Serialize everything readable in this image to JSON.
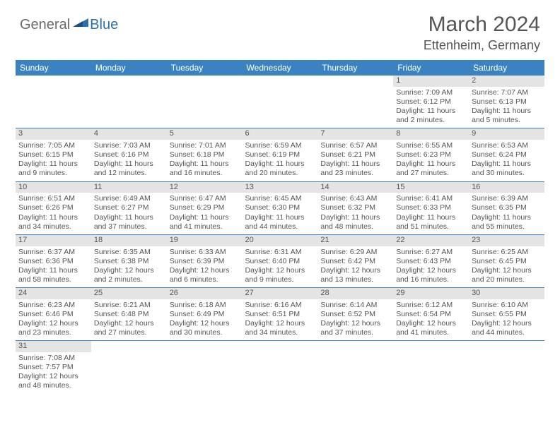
{
  "brand": {
    "part1": "General",
    "part2": "Blue"
  },
  "title": "March 2024",
  "location": "Ettenheim, Germany",
  "colors": {
    "header_bg": "#3b83c0",
    "header_text": "#ffffff",
    "daynum_bg": "#e4e4e4",
    "text": "#555555",
    "row_border": "#3b83c0",
    "brand_blue": "#2b6fb0",
    "brand_gray": "#6a6a6a"
  },
  "day_headers": [
    "Sunday",
    "Monday",
    "Tuesday",
    "Wednesday",
    "Thursday",
    "Friday",
    "Saturday"
  ],
  "weeks": [
    [
      null,
      null,
      null,
      null,
      null,
      {
        "n": "1",
        "sr": "Sunrise: 7:09 AM",
        "ss": "Sunset: 6:12 PM",
        "d1": "Daylight: 11 hours",
        "d2": "and 2 minutes."
      },
      {
        "n": "2",
        "sr": "Sunrise: 7:07 AM",
        "ss": "Sunset: 6:13 PM",
        "d1": "Daylight: 11 hours",
        "d2": "and 5 minutes."
      }
    ],
    [
      {
        "n": "3",
        "sr": "Sunrise: 7:05 AM",
        "ss": "Sunset: 6:15 PM",
        "d1": "Daylight: 11 hours",
        "d2": "and 9 minutes."
      },
      {
        "n": "4",
        "sr": "Sunrise: 7:03 AM",
        "ss": "Sunset: 6:16 PM",
        "d1": "Daylight: 11 hours",
        "d2": "and 12 minutes."
      },
      {
        "n": "5",
        "sr": "Sunrise: 7:01 AM",
        "ss": "Sunset: 6:18 PM",
        "d1": "Daylight: 11 hours",
        "d2": "and 16 minutes."
      },
      {
        "n": "6",
        "sr": "Sunrise: 6:59 AM",
        "ss": "Sunset: 6:19 PM",
        "d1": "Daylight: 11 hours",
        "d2": "and 20 minutes."
      },
      {
        "n": "7",
        "sr": "Sunrise: 6:57 AM",
        "ss": "Sunset: 6:21 PM",
        "d1": "Daylight: 11 hours",
        "d2": "and 23 minutes."
      },
      {
        "n": "8",
        "sr": "Sunrise: 6:55 AM",
        "ss": "Sunset: 6:23 PM",
        "d1": "Daylight: 11 hours",
        "d2": "and 27 minutes."
      },
      {
        "n": "9",
        "sr": "Sunrise: 6:53 AM",
        "ss": "Sunset: 6:24 PM",
        "d1": "Daylight: 11 hours",
        "d2": "and 30 minutes."
      }
    ],
    [
      {
        "n": "10",
        "sr": "Sunrise: 6:51 AM",
        "ss": "Sunset: 6:26 PM",
        "d1": "Daylight: 11 hours",
        "d2": "and 34 minutes."
      },
      {
        "n": "11",
        "sr": "Sunrise: 6:49 AM",
        "ss": "Sunset: 6:27 PM",
        "d1": "Daylight: 11 hours",
        "d2": "and 37 minutes."
      },
      {
        "n": "12",
        "sr": "Sunrise: 6:47 AM",
        "ss": "Sunset: 6:29 PM",
        "d1": "Daylight: 11 hours",
        "d2": "and 41 minutes."
      },
      {
        "n": "13",
        "sr": "Sunrise: 6:45 AM",
        "ss": "Sunset: 6:30 PM",
        "d1": "Daylight: 11 hours",
        "d2": "and 44 minutes."
      },
      {
        "n": "14",
        "sr": "Sunrise: 6:43 AM",
        "ss": "Sunset: 6:32 PM",
        "d1": "Daylight: 11 hours",
        "d2": "and 48 minutes."
      },
      {
        "n": "15",
        "sr": "Sunrise: 6:41 AM",
        "ss": "Sunset: 6:33 PM",
        "d1": "Daylight: 11 hours",
        "d2": "and 51 minutes."
      },
      {
        "n": "16",
        "sr": "Sunrise: 6:39 AM",
        "ss": "Sunset: 6:35 PM",
        "d1": "Daylight: 11 hours",
        "d2": "and 55 minutes."
      }
    ],
    [
      {
        "n": "17",
        "sr": "Sunrise: 6:37 AM",
        "ss": "Sunset: 6:36 PM",
        "d1": "Daylight: 11 hours",
        "d2": "and 58 minutes."
      },
      {
        "n": "18",
        "sr": "Sunrise: 6:35 AM",
        "ss": "Sunset: 6:38 PM",
        "d1": "Daylight: 12 hours",
        "d2": "and 2 minutes."
      },
      {
        "n": "19",
        "sr": "Sunrise: 6:33 AM",
        "ss": "Sunset: 6:39 PM",
        "d1": "Daylight: 12 hours",
        "d2": "and 6 minutes."
      },
      {
        "n": "20",
        "sr": "Sunrise: 6:31 AM",
        "ss": "Sunset: 6:40 PM",
        "d1": "Daylight: 12 hours",
        "d2": "and 9 minutes."
      },
      {
        "n": "21",
        "sr": "Sunrise: 6:29 AM",
        "ss": "Sunset: 6:42 PM",
        "d1": "Daylight: 12 hours",
        "d2": "and 13 minutes."
      },
      {
        "n": "22",
        "sr": "Sunrise: 6:27 AM",
        "ss": "Sunset: 6:43 PM",
        "d1": "Daylight: 12 hours",
        "d2": "and 16 minutes."
      },
      {
        "n": "23",
        "sr": "Sunrise: 6:25 AM",
        "ss": "Sunset: 6:45 PM",
        "d1": "Daylight: 12 hours",
        "d2": "and 20 minutes."
      }
    ],
    [
      {
        "n": "24",
        "sr": "Sunrise: 6:23 AM",
        "ss": "Sunset: 6:46 PM",
        "d1": "Daylight: 12 hours",
        "d2": "and 23 minutes."
      },
      {
        "n": "25",
        "sr": "Sunrise: 6:21 AM",
        "ss": "Sunset: 6:48 PM",
        "d1": "Daylight: 12 hours",
        "d2": "and 27 minutes."
      },
      {
        "n": "26",
        "sr": "Sunrise: 6:18 AM",
        "ss": "Sunset: 6:49 PM",
        "d1": "Daylight: 12 hours",
        "d2": "and 30 minutes."
      },
      {
        "n": "27",
        "sr": "Sunrise: 6:16 AM",
        "ss": "Sunset: 6:51 PM",
        "d1": "Daylight: 12 hours",
        "d2": "and 34 minutes."
      },
      {
        "n": "28",
        "sr": "Sunrise: 6:14 AM",
        "ss": "Sunset: 6:52 PM",
        "d1": "Daylight: 12 hours",
        "d2": "and 37 minutes."
      },
      {
        "n": "29",
        "sr": "Sunrise: 6:12 AM",
        "ss": "Sunset: 6:54 PM",
        "d1": "Daylight: 12 hours",
        "d2": "and 41 minutes."
      },
      {
        "n": "30",
        "sr": "Sunrise: 6:10 AM",
        "ss": "Sunset: 6:55 PM",
        "d1": "Daylight: 12 hours",
        "d2": "and 44 minutes."
      }
    ],
    [
      {
        "n": "31",
        "sr": "Sunrise: 7:08 AM",
        "ss": "Sunset: 7:57 PM",
        "d1": "Daylight: 12 hours",
        "d2": "and 48 minutes."
      },
      null,
      null,
      null,
      null,
      null,
      null
    ]
  ]
}
